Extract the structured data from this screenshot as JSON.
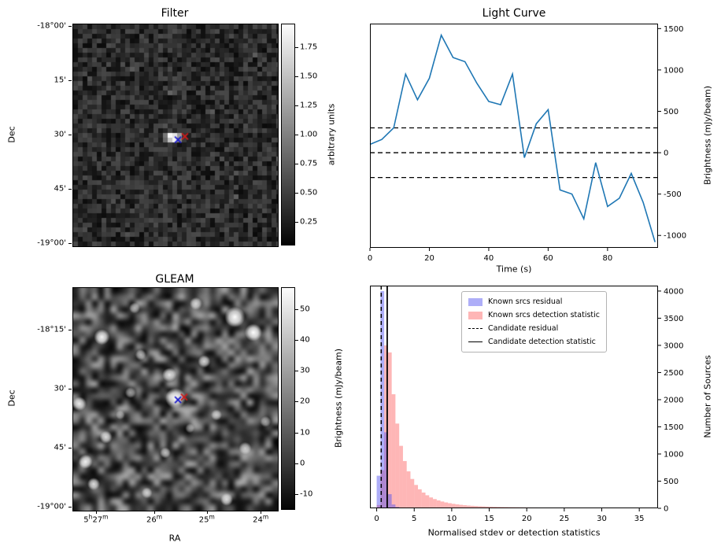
{
  "chart_data": [
    {
      "id": "filter",
      "type": "heatmap",
      "title": "Filter",
      "ylabel": "Dec",
      "yticks": [
        {
          "label": "-18°00'",
          "f": 0.012
        },
        {
          "label": "15'",
          "f": 0.256
        },
        {
          "label": "30'",
          "f": 0.5
        },
        {
          "label": "45'",
          "f": 0.744
        },
        {
          "label": "-19°00'",
          "f": 0.988
        }
      ],
      "colorbar": {
        "label": "arbitrary units",
        "vmin": 0.05,
        "vmax": 1.95,
        "ticks": [
          {
            "v": 0.25,
            "label": "0.25"
          },
          {
            "v": 0.5,
            "label": "0.50"
          },
          {
            "v": 0.75,
            "label": "0.75"
          },
          {
            "v": 1.0,
            "label": "1.00"
          },
          {
            "v": 1.25,
            "label": "1.25"
          },
          {
            "v": 1.5,
            "label": "1.50"
          },
          {
            "v": 1.75,
            "label": "1.75"
          }
        ]
      },
      "noise": {
        "seed": 11,
        "cell": 6,
        "base": 0.08,
        "spread": 0.5
      },
      "source": {
        "fx": 0.48,
        "fy": 0.49,
        "cells": [
          [
            0,
            0,
            1.9
          ],
          [
            1,
            0,
            1.75
          ],
          [
            2,
            0,
            1.2
          ],
          [
            -1,
            0,
            0.9
          ],
          [
            0,
            1,
            1.5
          ],
          [
            1,
            1,
            1.85
          ],
          [
            2,
            1,
            1.0
          ],
          [
            -1,
            1,
            0.8
          ]
        ]
      },
      "markers": [
        {
          "shape": "x",
          "color": "#1a1acd",
          "fx": 0.512,
          "fy": 0.52
        },
        {
          "shape": "x",
          "color": "#cd1a1a",
          "fx": 0.546,
          "fy": 0.505
        }
      ]
    },
    {
      "id": "light_curve",
      "type": "line",
      "title": "Light Curve",
      "xlabel": "Time (s)",
      "ylabel": "Brightness (mJy/beam)",
      "xlim": [
        0,
        97
      ],
      "ylim": [
        -1150,
        1560
      ],
      "xticks": [
        0,
        20,
        40,
        60,
        80
      ],
      "yticks": [
        -1000,
        -500,
        0,
        500,
        1000,
        1500
      ],
      "threshold_lines": [
        300,
        0,
        -300
      ],
      "color": "#1f77b4",
      "x": [
        0,
        4,
        8,
        12,
        16,
        20,
        24,
        28,
        32,
        36,
        40,
        44,
        48,
        52,
        56,
        60,
        64,
        68,
        72,
        76,
        80,
        84,
        88,
        92,
        96
      ],
      "y": [
        100,
        160,
        300,
        950,
        640,
        900,
        1420,
        1150,
        1100,
        840,
        620,
        580,
        950,
        -60,
        350,
        520,
        -450,
        -500,
        -800,
        -120,
        -650,
        -550,
        -250,
        -600,
        -1080
      ]
    },
    {
      "id": "gleam",
      "type": "heatmap",
      "title": "GLEAM",
      "xlabel": "RA",
      "ylabel": "Dec",
      "yticks": [
        {
          "label": "-18°15'",
          "f": 0.19
        },
        {
          "label": "30'",
          "f": 0.455
        },
        {
          "label": "45'",
          "f": 0.72
        },
        {
          "label": "-19°00'",
          "f": 0.985
        }
      ],
      "xticks": [
        {
          "f": 0.115,
          "segs": [
            {
              "t": "5",
              "sup": false
            },
            {
              "t": "h",
              "sup": true
            },
            {
              "t": "27",
              "sup": false
            },
            {
              "t": "m",
              "sup": true
            }
          ]
        },
        {
          "f": 0.4,
          "segs": [
            {
              "t": "26",
              "sup": false
            },
            {
              "t": "m",
              "sup": true
            }
          ]
        },
        {
          "f": 0.657,
          "segs": [
            {
              "t": "25",
              "sup": false
            },
            {
              "t": "m",
              "sup": true
            }
          ]
        },
        {
          "f": 0.92,
          "segs": [
            {
              "t": "24",
              "sup": false
            },
            {
              "t": "m",
              "sup": true
            }
          ]
        }
      ],
      "colorbar": {
        "label": "Brightness (mJy/beam)",
        "vmin": -15,
        "vmax": 57,
        "ticks": [
          {
            "v": 50,
            "label": "50"
          },
          {
            "v": 40,
            "label": "40"
          },
          {
            "v": 30,
            "label": "30"
          },
          {
            "v": 20,
            "label": "20"
          },
          {
            "v": 10,
            "label": "10"
          },
          {
            "v": 0,
            "label": "0"
          },
          {
            "v": -10,
            "label": "-10"
          }
        ]
      },
      "noise": {
        "seed": 99
      },
      "sources": [
        [
          0.79,
          0.13,
          10,
          1
        ],
        [
          0.88,
          0.2,
          8,
          1
        ],
        [
          0.6,
          0.07,
          5,
          0.75
        ],
        [
          0.3,
          0.09,
          4,
          0.6
        ],
        [
          0.14,
          0.22,
          7,
          0.95
        ],
        [
          0.33,
          0.3,
          4,
          0.65
        ],
        [
          0.64,
          0.33,
          5,
          0.8
        ],
        [
          0.47,
          0.39,
          6,
          0.9
        ],
        [
          0.03,
          0.52,
          6,
          0.9
        ],
        [
          0.28,
          0.47,
          4,
          0.6
        ],
        [
          0.5,
          0.495,
          10,
          1
        ],
        [
          0.7,
          0.57,
          4,
          0.65
        ],
        [
          0.16,
          0.67,
          5,
          0.8
        ],
        [
          0.45,
          0.74,
          4,
          0.7
        ],
        [
          0.84,
          0.72,
          5,
          0.7
        ],
        [
          0.06,
          0.78,
          6,
          0.9
        ],
        [
          0.1,
          0.88,
          5,
          0.85
        ],
        [
          0.36,
          0.92,
          4,
          0.7
        ],
        [
          0.75,
          0.95,
          5,
          0.8
        ],
        [
          0.94,
          0.6,
          4,
          0.6
        ],
        [
          0.57,
          0.63,
          3,
          0.5
        ],
        [
          0.23,
          0.57,
          3,
          0.5
        ]
      ],
      "markers": [
        {
          "shape": "x",
          "color": "#1a1acd",
          "fx": 0.512,
          "fy": 0.502
        },
        {
          "shape": "x",
          "color": "#cd1a1a",
          "fx": 0.542,
          "fy": 0.49
        }
      ]
    },
    {
      "id": "hist",
      "type": "bar",
      "xlabel": "Normalised stdev or detection statistics",
      "ylabel": "Number of Sources",
      "xlim": [
        -0.9,
        37.5
      ],
      "ylim": [
        0,
        4100
      ],
      "xticks": [
        0,
        5,
        10,
        15,
        20,
        25,
        30,
        35
      ],
      "yticks": [
        0,
        500,
        1000,
        1500,
        2000,
        2500,
        3000,
        3500,
        4000
      ],
      "bin_start": 0,
      "bin_width": 0.5,
      "series": [
        {
          "name": "Known srcs residual",
          "color": "rgba(75,75,240,0.45)",
          "counts": [
            600,
            4000,
            1400,
            260,
            70,
            25,
            10,
            5,
            2,
            1
          ]
        },
        {
          "name": "Known srcs detection statistic",
          "color": "rgba(252,93,93,0.45)",
          "counts": [
            60,
            700,
            3000,
            2870,
            2100,
            1560,
            1150,
            870,
            680,
            540,
            430,
            350,
            290,
            240,
            200,
            170,
            145,
            125,
            108,
            94,
            82,
            72,
            64,
            57,
            51,
            46,
            42,
            38,
            35,
            32,
            30,
            28,
            26,
            24,
            23,
            21,
            20,
            19,
            18,
            17,
            16,
            15,
            15,
            14,
            13,
            13,
            12,
            12,
            11,
            11,
            10,
            10,
            10,
            9,
            9,
            9,
            8,
            8,
            8,
            8,
            7,
            7,
            7,
            7,
            6,
            6,
            6,
            6,
            6,
            5,
            5,
            5
          ]
        }
      ],
      "candidate_residual": {
        "label": "Candidate residual",
        "x": 0.6,
        "style": "dashed"
      },
      "candidate_detection": {
        "label": "Candidate detection statistic",
        "x": 1.4,
        "style": "solid"
      }
    }
  ]
}
